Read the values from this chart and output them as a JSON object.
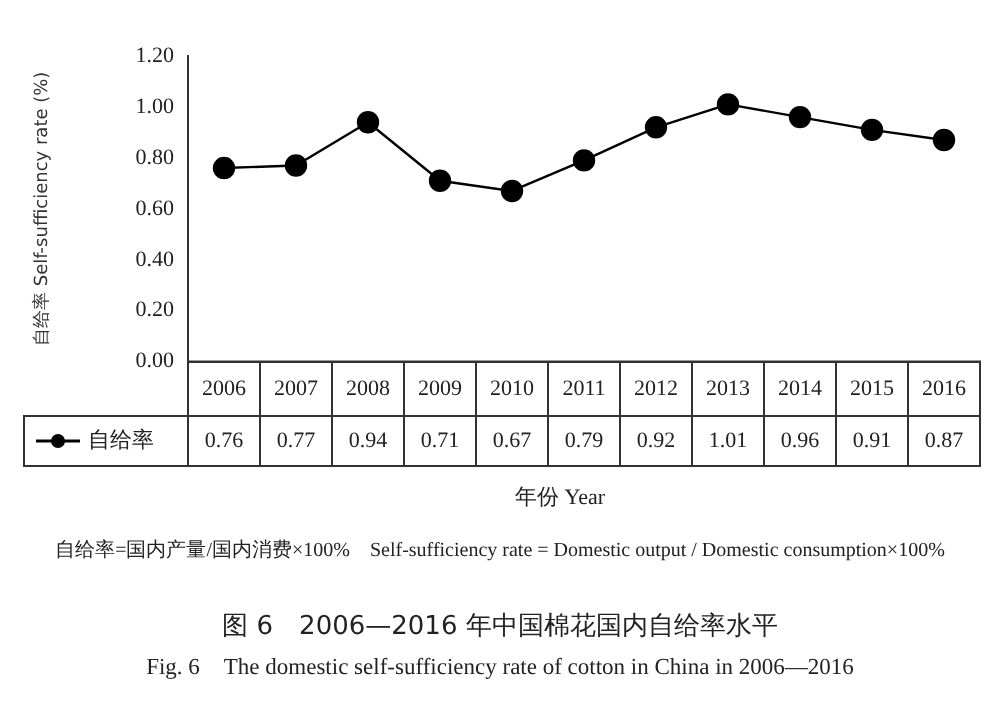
{
  "chart_data": {
    "type": "line",
    "title": "图 6　2006—2016 年中国棉花国内自给率水平",
    "subtitle": "Fig. 6　The domestic self-sufficiency rate of cotton in China in 2006—2016",
    "xlabel": "年份 Year",
    "ylabel": "自给率 Self-sufficiency rate (%)",
    "categories": [
      "2006",
      "2007",
      "2008",
      "2009",
      "2010",
      "2011",
      "2012",
      "2013",
      "2014",
      "2015",
      "2016"
    ],
    "series": [
      {
        "name": "自给率",
        "color": "#000000",
        "values": [
          0.76,
          0.77,
          0.94,
          0.71,
          0.67,
          0.79,
          0.92,
          1.01,
          0.96,
          0.91,
          0.87
        ]
      }
    ],
    "ylim": [
      0,
      1.2
    ],
    "yticks": [
      {
        "value": 0,
        "label": "0.00"
      },
      {
        "value": 0.2,
        "label": "0.20"
      },
      {
        "value": 0.4,
        "label": "0.40"
      },
      {
        "value": 0.6,
        "label": "0.60"
      },
      {
        "value": 0.8,
        "label": "0.80"
      },
      {
        "value": 1.0,
        "label": "1.00"
      },
      {
        "value": 1.2,
        "label": "1.20"
      }
    ],
    "data_labels": true,
    "legend": "bottom left",
    "marker": "circle",
    "line_style": "solid",
    "grid": false,
    "annotations": [
      "自给率=国内产量/国内消费×100%　Self-sufficiency rate = Domestic output / Domestic consumption×100%"
    ]
  }
}
